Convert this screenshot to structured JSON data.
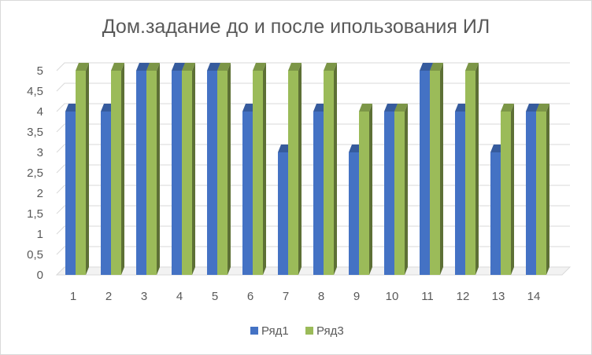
{
  "chart_data": {
    "type": "bar",
    "title": "Дом.задание до и после ипользования ИЛ",
    "categories": [
      "1",
      "2",
      "3",
      "4",
      "5",
      "6",
      "7",
      "8",
      "9",
      "10",
      "11",
      "12",
      "13",
      "14"
    ],
    "series": [
      {
        "name": "Ряд1",
        "color": "#4472c4",
        "values": [
          4,
          4,
          5,
          5,
          5,
          4,
          3,
          4,
          3,
          4,
          5,
          4,
          3,
          4
        ]
      },
      {
        "name": "Ряд3",
        "color": "#9bbb59",
        "values": [
          5,
          5,
          5,
          5,
          5,
          5,
          5,
          5,
          4,
          4,
          5,
          5,
          4,
          4
        ]
      }
    ],
    "y_tick_labels": [
      "0",
      "0,5",
      "1",
      "1,5",
      "2",
      "2,5",
      "3",
      "3,5",
      "4",
      "4,5",
      "5"
    ],
    "ylim": [
      0,
      5
    ],
    "grid": true,
    "legend_position": "bottom",
    "style": "3d-clustered-column"
  }
}
